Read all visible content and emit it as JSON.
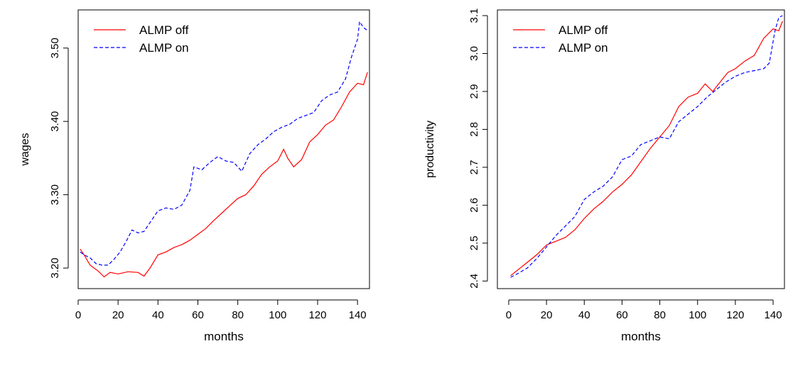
{
  "chart_data": [
    {
      "type": "line",
      "xlabel": "months",
      "ylabel": "wages",
      "xlim": [
        0,
        146
      ],
      "ylim": [
        3.172,
        3.552
      ],
      "xticks": [
        0,
        20,
        40,
        60,
        80,
        100,
        120,
        140
      ],
      "yticks": [
        3.2,
        3.3,
        3.4,
        3.5
      ],
      "ytick_labels": [
        "3.20",
        "3.30",
        "3.40",
        "3.50"
      ],
      "legend_position": "top-left",
      "series": [
        {
          "name": "ALMP off",
          "color": "#ff0000",
          "dash": "solid",
          "x": [
            1,
            3,
            6,
            10,
            13,
            16,
            20,
            25,
            30,
            33,
            36,
            40,
            44,
            48,
            52,
            56,
            60,
            64,
            68,
            72,
            76,
            80,
            84,
            88,
            92,
            96,
            100,
            103,
            105,
            108,
            112,
            116,
            120,
            124,
            128,
            132,
            136,
            140,
            143,
            145
          ],
          "values": [
            3.226,
            3.218,
            3.204,
            3.196,
            3.188,
            3.194,
            3.192,
            3.195,
            3.194,
            3.189,
            3.2,
            3.218,
            3.222,
            3.228,
            3.232,
            3.238,
            3.246,
            3.254,
            3.265,
            3.275,
            3.285,
            3.295,
            3.3,
            3.312,
            3.328,
            3.338,
            3.346,
            3.362,
            3.35,
            3.338,
            3.348,
            3.372,
            3.382,
            3.395,
            3.402,
            3.42,
            3.44,
            3.452,
            3.45,
            3.467
          ]
        },
        {
          "name": "ALMP on",
          "color": "#0000ff",
          "dash": "dashed",
          "x": [
            1,
            3,
            6,
            9,
            12,
            15,
            18,
            21,
            24,
            27,
            30,
            33,
            36,
            40,
            44,
            48,
            52,
            56,
            58,
            62,
            66,
            70,
            74,
            78,
            82,
            86,
            90,
            94,
            98,
            102,
            106,
            110,
            114,
            118,
            122,
            126,
            130,
            134,
            137,
            140,
            141,
            143,
            145
          ],
          "values": [
            3.222,
            3.218,
            3.214,
            3.206,
            3.204,
            3.204,
            3.212,
            3.222,
            3.236,
            3.252,
            3.248,
            3.25,
            3.262,
            3.278,
            3.282,
            3.28,
            3.286,
            3.306,
            3.338,
            3.334,
            3.344,
            3.352,
            3.346,
            3.344,
            3.332,
            3.356,
            3.368,
            3.376,
            3.386,
            3.392,
            3.396,
            3.404,
            3.408,
            3.412,
            3.428,
            3.436,
            3.44,
            3.458,
            3.488,
            3.512,
            3.536,
            3.528,
            3.524
          ]
        }
      ]
    },
    {
      "type": "line",
      "xlabel": "months",
      "ylabel": "productivity",
      "xlim": [
        -6,
        146
      ],
      "ylim": [
        2.38,
        3.115
      ],
      "xticks": [
        0,
        20,
        40,
        60,
        80,
        100,
        120,
        140
      ],
      "yticks": [
        2.4,
        2.5,
        2.6,
        2.7,
        2.8,
        2.9,
        3.0,
        3.1
      ],
      "ytick_labels": [
        "2.4",
        "2.5",
        "2.6",
        "2.7",
        "2.8",
        "2.9",
        "3.0",
        "3.1"
      ],
      "legend_position": "top-left",
      "series": [
        {
          "name": "ALMP off",
          "color": "#ff0000",
          "dash": "solid",
          "x": [
            1,
            5,
            10,
            15,
            20,
            25,
            30,
            35,
            40,
            45,
            50,
            55,
            60,
            65,
            70,
            75,
            80,
            85,
            90,
            95,
            100,
            104,
            108,
            112,
            116,
            120,
            125,
            130,
            135,
            140,
            143,
            145
          ],
          "values": [
            2.414,
            2.43,
            2.45,
            2.47,
            2.495,
            2.505,
            2.515,
            2.535,
            2.565,
            2.59,
            2.61,
            2.635,
            2.655,
            2.68,
            2.715,
            2.75,
            2.78,
            2.81,
            2.86,
            2.885,
            2.895,
            2.92,
            2.9,
            2.925,
            2.95,
            2.96,
            2.98,
            2.995,
            3.04,
            3.065,
            3.06,
            3.085
          ]
        },
        {
          "name": "ALMP on",
          "color": "#0000ff",
          "dash": "dashed",
          "x": [
            1,
            5,
            10,
            15,
            20,
            25,
            30,
            35,
            40,
            45,
            50,
            55,
            60,
            65,
            70,
            75,
            80,
            85,
            90,
            95,
            100,
            105,
            110,
            115,
            120,
            125,
            130,
            135,
            138,
            141,
            143,
            145
          ],
          "values": [
            2.41,
            2.42,
            2.435,
            2.46,
            2.49,
            2.52,
            2.545,
            2.57,
            2.615,
            2.635,
            2.65,
            2.675,
            2.72,
            2.73,
            2.76,
            2.77,
            2.78,
            2.775,
            2.82,
            2.84,
            2.86,
            2.885,
            2.905,
            2.925,
            2.94,
            2.95,
            2.955,
            2.96,
            2.975,
            3.06,
            3.095,
            3.1
          ]
        }
      ]
    }
  ]
}
